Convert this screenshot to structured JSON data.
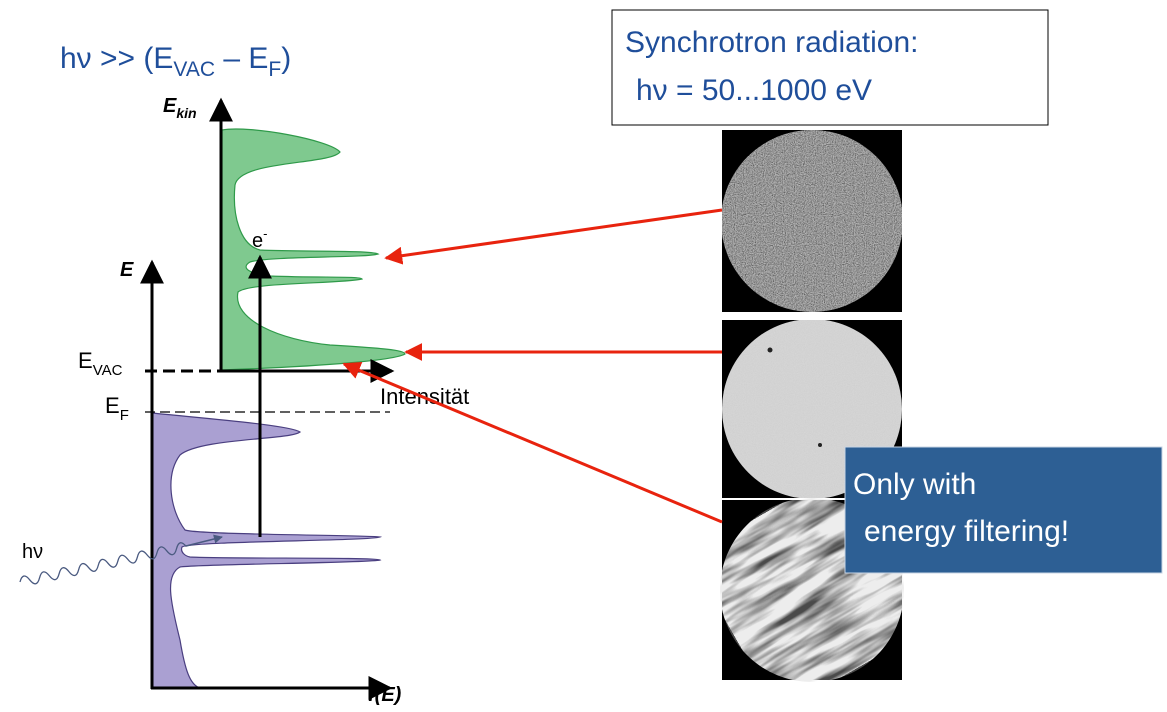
{
  "formula": {
    "parts": [
      "hν >> (E",
      "VAC",
      " – E",
      "F",
      ")"
    ]
  },
  "synchrotron_box": {
    "line1": "Synchrotron radiation:",
    "line2": "hν = 50...1000 eV"
  },
  "upper_axis": {
    "y_label": "E",
    "y_label_sub": "kin",
    "x_label": "Intensität"
  },
  "lower_axis": {
    "y_label": "E",
    "x_label": "f(E)"
  },
  "levels": {
    "vac": "E",
    "vac_sub": "VAC",
    "fermi": "E",
    "fermi_sub": "F"
  },
  "electron": {
    "label": "e",
    "sup": "-"
  },
  "photon": {
    "label": "hν"
  },
  "note": {
    "line1": "Only with",
    "line2": "energy filtering!"
  }
}
